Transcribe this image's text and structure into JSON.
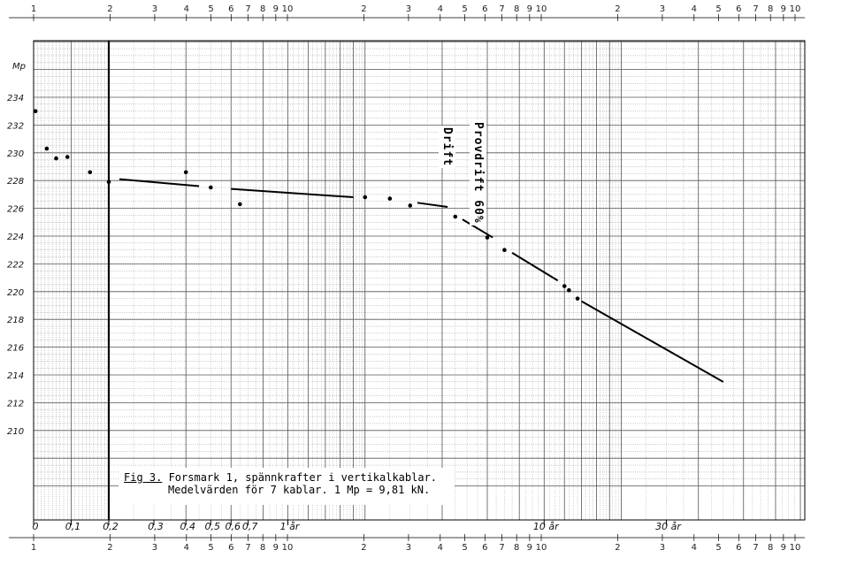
{
  "chart_data": {
    "type": "scatter",
    "x_scale": "log",
    "y_scale": "linear",
    "xlim": [
      0,
      50
    ],
    "ylim": [
      205,
      240
    ],
    "ylabel": "Mp",
    "y_ticks": [
      210,
      212,
      214,
      216,
      218,
      220,
      222,
      224,
      226,
      228,
      230,
      232,
      234
    ],
    "y_tick_labels": [
      "210",
      "212",
      "214",
      "216",
      "218",
      "220",
      "222",
      "224",
      "226",
      "228",
      "230",
      "232",
      "234"
    ],
    "x_ticks": [
      0,
      0.1,
      0.2,
      0.3,
      0.4,
      0.5,
      0.6,
      0.7,
      1,
      10,
      30
    ],
    "x_tick_labels": [
      "0",
      "0,1",
      "0,2",
      "0,3",
      "0,4",
      "0,5",
      "0,6",
      "0,7",
      "1 år",
      "10 år",
      "30 år"
    ],
    "top_scale_labels": [
      "1",
      "2",
      "3",
      "4",
      "5",
      "6",
      "7",
      "8",
      "9",
      "10",
      "2",
      "3",
      "4",
      "5",
      "6",
      "7",
      "8",
      "9",
      "10",
      "2",
      "3",
      "4",
      "5",
      "6",
      "7",
      "8",
      "9",
      "10"
    ],
    "series": [
      {
        "points": [
          {
            "x": 0.005,
            "y": 233.0
          },
          {
            "x": 0.035,
            "y": 230.3
          },
          {
            "x": 0.06,
            "y": 229.6
          },
          {
            "x": 0.09,
            "y": 229.7
          },
          {
            "x": 0.15,
            "y": 228.6
          },
          {
            "x": 0.2,
            "y": 227.9
          },
          {
            "x": 0.4,
            "y": 228.6
          },
          {
            "x": 0.5,
            "y": 227.5
          },
          {
            "x": 0.65,
            "y": 226.3
          },
          {
            "x": 2.0,
            "y": 226.8
          },
          {
            "x": 2.5,
            "y": 226.7
          },
          {
            "x": 3.0,
            "y": 226.2
          },
          {
            "x": 4.5,
            "y": 225.4
          },
          {
            "x": 6.0,
            "y": 223.9
          },
          {
            "x": 7.0,
            "y": 223.0
          },
          {
            "x": 12.0,
            "y": 220.4
          },
          {
            "x": 12.5,
            "y": 220.1
          },
          {
            "x": 13.5,
            "y": 219.5
          }
        ]
      }
    ],
    "trend_segments": [
      {
        "x1": 0.22,
        "y1": 228.1,
        "x2": 0.45,
        "y2": 227.6
      },
      {
        "x1": 0.6,
        "y1": 227.4,
        "x2": 1.8,
        "y2": 226.8
      },
      {
        "x1": 3.2,
        "y1": 226.4,
        "x2": 4.2,
        "y2": 226.1
      },
      {
        "x1": 4.8,
        "y1": 225.2,
        "x2": 6.3,
        "y2": 223.9
      },
      {
        "x1": 7.5,
        "y1": 222.8,
        "x2": 11.3,
        "y2": 220.8
      },
      {
        "x1": 14.0,
        "y1": 219.3,
        "x2": 50,
        "y2": 213.5
      }
    ],
    "reference_lines": [
      0.2
    ],
    "annotations": [
      {
        "text": "Drift",
        "x": 4.5,
        "y": 230.5
      },
      {
        "text": "Provdrift 60%",
        "x": 5.6,
        "y": 230.5
      }
    ],
    "caption": {
      "figure_number": "Fig 3.",
      "line1": " Forsmark 1, spännkrafter i vertikalkablar.",
      "line2": "Medelvärden för 7 kablar.  1 Mp = 9,81 kN."
    }
  },
  "colors": {
    "grid": "#555555",
    "ink": "#000000",
    "paper": "#ffffff"
  }
}
